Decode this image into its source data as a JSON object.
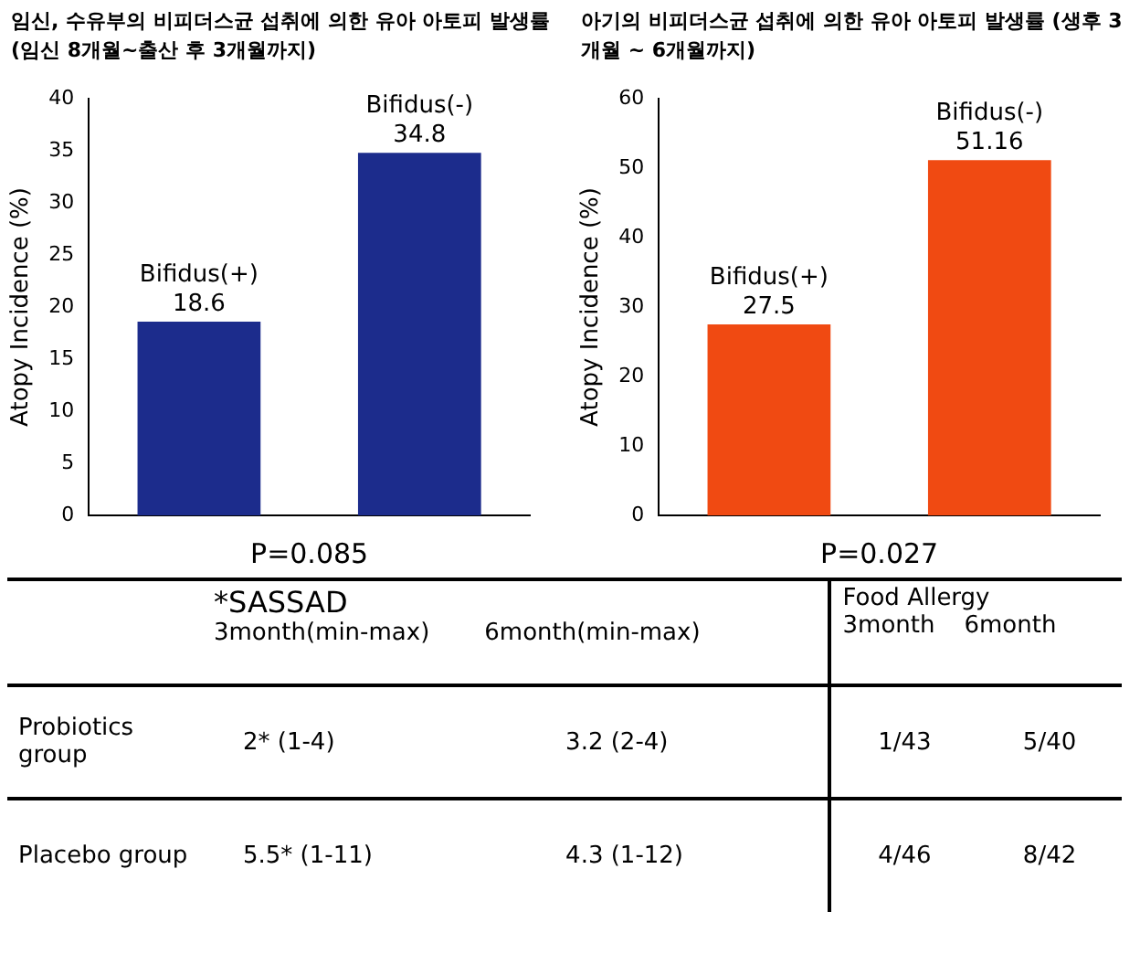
{
  "chart_data": [
    {
      "type": "bar",
      "title": "임신, 수유부의 비피더스균 섭취에 의한 유아 아토피 발생률 (임신 8개월~출산 후 3개월까지)",
      "ylabel": "Atopy Incidence (%)",
      "categories": [
        "Bifidus(+)",
        "Bifidus(-)"
      ],
      "values": [
        18.6,
        34.8
      ],
      "color": "#1c2c8c",
      "ylim": [
        0,
        40
      ],
      "yticks": [
        0,
        5,
        10,
        15,
        20,
        25,
        30,
        35,
        40
      ],
      "grid": false,
      "legend": false,
      "data_labels": true,
      "tick_labels": "y",
      "annotations": [
        "P=0.085"
      ]
    },
    {
      "type": "bar",
      "title": "아기의 비피더스균 섭취에 의한 유아 아토피 발생률 (생후 3개월 ~ 6개월까지)",
      "ylabel": "Atopy Incidence (%)",
      "categories": [
        "Bifidus(+)",
        "Bifidus(-)"
      ],
      "values": [
        27.5,
        51.16
      ],
      "color": "#f04a12",
      "ylim": [
        0,
        60
      ],
      "yticks": [
        0,
        10,
        20,
        30,
        40,
        50,
        60
      ],
      "grid": false,
      "legend": false,
      "data_labels": true,
      "tick_labels": "y",
      "annotations": [
        "P=0.027"
      ]
    },
    {
      "type": "other",
      "annotations": [
        "*SASSAD",
        "3month(min-max)",
        "6month(min-max)",
        "Food  Allergy",
        "3month",
        "6month",
        "Probiotics group",
        "2* (1-4)",
        "3.2 (2-4)",
        "1/43",
        "5/40",
        "Placebo group",
        "5.5* (1-11)",
        "4.3 (1-12)",
        "4/46",
        "8/42"
      ]
    }
  ]
}
